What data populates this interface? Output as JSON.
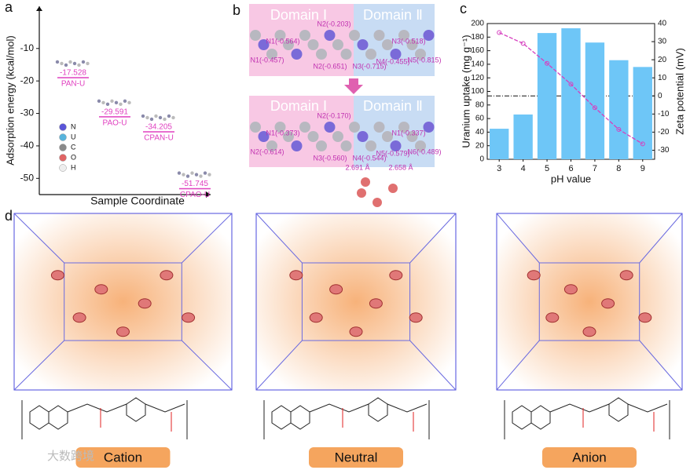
{
  "chart_data": [
    {
      "type": "scatter",
      "panel_label": "a",
      "ylabel": "Adsorption energy (kcal/mol)",
      "xlabel": "Sample Coordinate",
      "categories": [
        "PAN-U",
        "PAO-U",
        "CPAN-U",
        "CPAO-U"
      ],
      "values": [
        -17.528,
        -29.591,
        -34.205,
        -51.745
      ],
      "color": "#e040c0",
      "ylim": [
        -55,
        3
      ],
      "yticks": [
        -10,
        -20,
        -30,
        -40,
        -50
      ],
      "legend": {
        "names": [
          "N",
          "U",
          "C",
          "O",
          "H"
        ],
        "colors": [
          "#5a55d8",
          "#58b4dc",
          "#8a8a8a",
          "#e06464",
          "#eeeeee"
        ]
      }
    },
    {
      "type": "bar",
      "panel_label": "c",
      "xlabel": "pH value",
      "ylabel": "Uranium uptake (mg g⁻¹)",
      "y2label": "Zeta potential (mV)",
      "categories": [
        3,
        4,
        5,
        6,
        7,
        8,
        9
      ],
      "series": [
        {
          "type": "bar",
          "color": "#6ec6f7",
          "values": [
            45,
            66,
            186,
            193,
            172,
            146,
            136
          ]
        },
        {
          "type": "line",
          "axis": "y2",
          "color": "#d63fbf",
          "values": [
            35,
            29,
            18,
            6.5,
            -6.5,
            -18.5,
            -26.5
          ]
        }
      ],
      "ylim": [
        0,
        200
      ],
      "yticks": [
        0,
        20,
        40,
        60,
        80,
        100,
        120,
        140,
        160,
        180,
        200
      ],
      "y2lim": [
        -35,
        40
      ],
      "y2ticks": [
        -30,
        -20,
        -10,
        0,
        10,
        20,
        30,
        40
      ],
      "y2_reference": 0
    }
  ],
  "panels": {
    "b": {
      "label": "b",
      "domains": [
        "Domain Ⅰ",
        "Domain Ⅱ"
      ],
      "top_labels": [
        "N1(-0.564)",
        "N2(-0.203)",
        "N3(-0.518)",
        "N1(-0.457)",
        "N2(-0.651)",
        "N3(-0.715)",
        "N4(-0.455)",
        "N5(-0.815)"
      ],
      "bottom_labels": [
        "N1(-0.373)",
        "N2(-0.170)",
        "N1(-0.337)",
        "N2(-0.614)",
        "N3(-0.560)",
        "N4(-0.544)",
        "N5(-0.579)",
        "N6(-0.489)"
      ],
      "distances": [
        "2.691 Å",
        "2.658 Å"
      ]
    },
    "d": {
      "label": "d",
      "states": [
        "Cation",
        "Neutral",
        "Anion"
      ]
    },
    "watermark": "大数跨境"
  }
}
